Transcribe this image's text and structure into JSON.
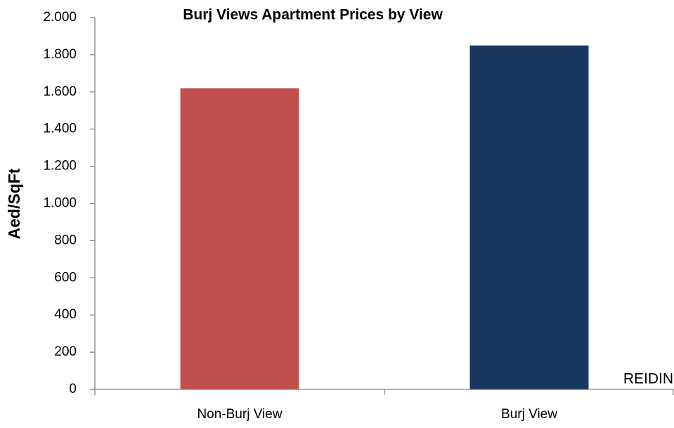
{
  "chart_data": {
    "type": "bar",
    "title": "Burj Views Apartment Prices by View",
    "y_label": "Aed/SqFt",
    "annotation": "REIDIN",
    "categories": [
      "Non-Burj View",
      "Burj View"
    ],
    "values": [
      1620,
      1850
    ],
    "colors": [
      "#c0504d",
      "#17375e"
    ],
    "ylim": [
      0,
      2000
    ],
    "yticks": [
      0,
      200,
      400,
      600,
      800,
      {
        "value": 1000,
        "label": "1.000"
      },
      {
        "value": 1200,
        "label": "1.200"
      },
      {
        "value": 1400,
        "label": "1.400"
      },
      {
        "value": 1600,
        "label": "1.600"
      },
      {
        "value": 1800,
        "label": "1.800"
      },
      {
        "value": 2000,
        "label": "2.000"
      }
    ],
    "grid": false
  }
}
